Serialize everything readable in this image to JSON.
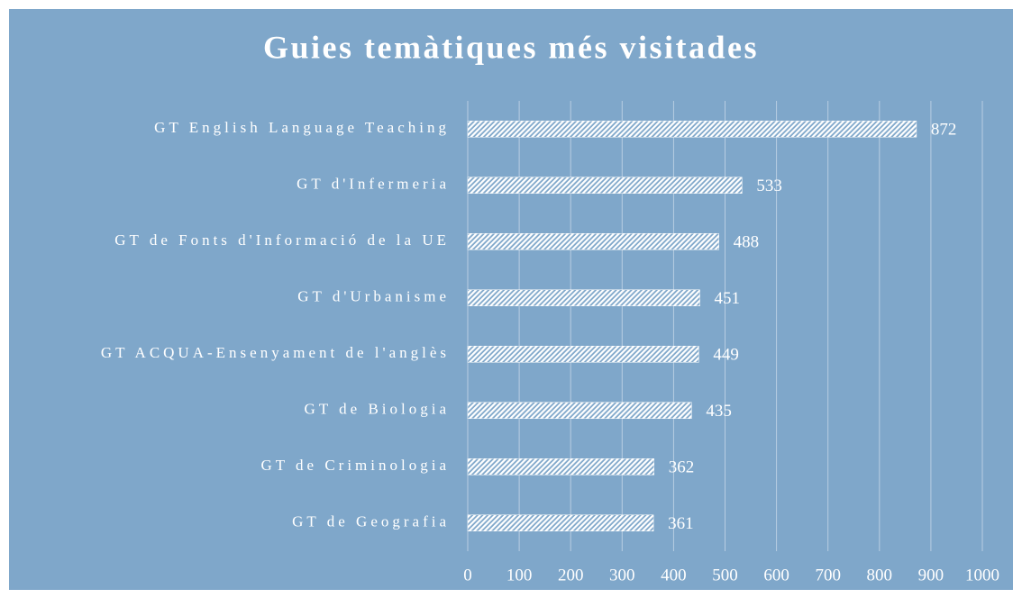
{
  "chart_data": {
    "type": "bar",
    "orientation": "horizontal",
    "title": "Guies temàtiques més visitades",
    "categories": [
      "GT English Language Teaching",
      "GT d'Infermeria",
      "GT de Fonts d'Informació de la UE",
      "GT d'Urbanisme",
      "GT ACQUA-Ensenyament de l'anglès",
      "GT de Biologia",
      "GT de Criminologia",
      "GT de Geografia"
    ],
    "values": [
      872,
      533,
      488,
      451,
      449,
      435,
      362,
      361
    ],
    "color": "#ffffff",
    "xlim": [
      0,
      1000
    ],
    "xticks": [
      0,
      100,
      200,
      300,
      400,
      500,
      600,
      700,
      800,
      900,
      1000
    ],
    "grid": true
  }
}
